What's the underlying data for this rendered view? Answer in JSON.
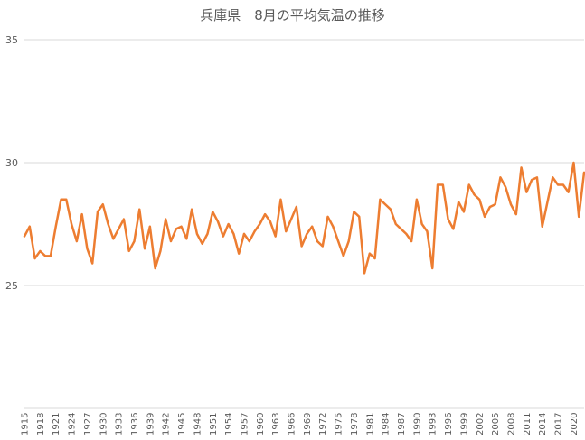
{
  "chart_data": {
    "type": "line",
    "title": "兵庫県　8月の平均気温の推移",
    "xlabel": "",
    "ylabel": "",
    "ylim": [
      20,
      35
    ],
    "yticks": [
      25,
      30,
      35
    ],
    "grid": "horizontal",
    "series_color": "#ED7D31",
    "x": [
      1915,
      1916,
      1917,
      1918,
      1919,
      1920,
      1921,
      1922,
      1923,
      1924,
      1925,
      1926,
      1927,
      1928,
      1929,
      1930,
      1931,
      1932,
      1933,
      1934,
      1935,
      1936,
      1937,
      1938,
      1939,
      1940,
      1941,
      1942,
      1943,
      1944,
      1945,
      1946,
      1947,
      1948,
      1949,
      1950,
      1951,
      1952,
      1953,
      1954,
      1955,
      1956,
      1957,
      1958,
      1959,
      1960,
      1961,
      1962,
      1963,
      1964,
      1965,
      1966,
      1967,
      1968,
      1969,
      1970,
      1971,
      1972,
      1973,
      1974,
      1975,
      1976,
      1977,
      1978,
      1979,
      1980,
      1981,
      1982,
      1983,
      1984,
      1985,
      1986,
      1987,
      1988,
      1989,
      1990,
      1991,
      1992,
      1993,
      1994,
      1995,
      1996,
      1997,
      1998,
      1999,
      2000,
      2001,
      2002,
      2003,
      2004,
      2005,
      2006,
      2007,
      2008,
      2009,
      2010,
      2011,
      2012,
      2013,
      2014,
      2015,
      2016,
      2017,
      2018,
      2019,
      2020,
      2021,
      2022
    ],
    "xticklabels": [
      "1915",
      "1918",
      "1921",
      "1924",
      "1927",
      "1930",
      "1933",
      "1936",
      "1939",
      "1942",
      "1945",
      "1948",
      "1951",
      "1954",
      "1957",
      "1960",
      "1963",
      "1966",
      "1969",
      "1972",
      "1975",
      "1978",
      "1981",
      "1984",
      "1987",
      "1990",
      "1993",
      "1996",
      "1999",
      "2002",
      "2005",
      "2008",
      "2011",
      "2014",
      "2017",
      "2020"
    ],
    "xtick_values": [
      1915,
      1918,
      1921,
      1924,
      1927,
      1930,
      1933,
      1936,
      1939,
      1942,
      1945,
      1948,
      1951,
      1954,
      1957,
      1960,
      1963,
      1966,
      1969,
      1972,
      1975,
      1978,
      1981,
      1984,
      1987,
      1990,
      1993,
      1996,
      1999,
      2002,
      2005,
      2008,
      2011,
      2014,
      2017,
      2020
    ],
    "values": [
      27.0,
      27.4,
      26.1,
      26.4,
      26.2,
      26.2,
      27.4,
      28.5,
      28.5,
      27.5,
      26.8,
      27.9,
      26.5,
      25.9,
      28.0,
      28.3,
      27.5,
      26.9,
      27.3,
      27.7,
      26.4,
      26.8,
      28.1,
      26.5,
      27.4,
      25.7,
      26.4,
      27.7,
      26.8,
      27.3,
      27.4,
      26.9,
      28.1,
      27.1,
      26.7,
      27.1,
      28.0,
      27.6,
      27.0,
      27.5,
      27.1,
      26.3,
      27.1,
      26.8,
      27.2,
      27.5,
      27.9,
      27.6,
      27.0,
      28.5,
      27.2,
      27.7,
      28.2,
      26.6,
      27.1,
      27.4,
      26.8,
      26.6,
      27.8,
      27.4,
      26.8,
      26.2,
      26.8,
      28.0,
      27.8,
      25.5,
      26.3,
      26.1,
      28.5,
      28.3,
      28.1,
      27.5,
      27.3,
      27.1,
      26.8,
      28.5,
      27.5,
      27.2,
      25.7,
      29.1,
      29.1,
      27.7,
      27.3,
      28.4,
      28.0,
      29.1,
      28.7,
      28.5,
      27.8,
      28.2,
      28.3,
      29.4,
      29.0,
      28.3,
      27.9,
      29.8,
      28.8,
      29.3,
      29.4,
      27.4,
      28.4,
      29.4,
      29.1,
      29.1,
      28.8,
      30.0,
      27.8,
      29.6
    ]
  }
}
